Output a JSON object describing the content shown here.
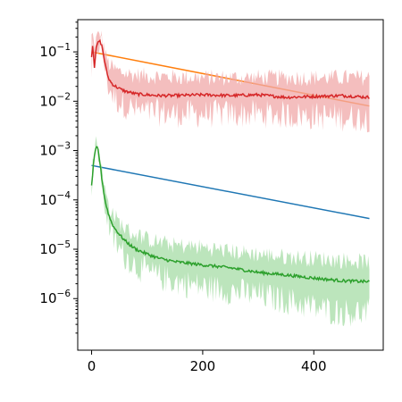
{
  "chart_data": {
    "type": "line",
    "title": "",
    "xlabel": "",
    "ylabel": "",
    "yscale": "log",
    "xlim": [
      -25,
      525
    ],
    "ylim": [
      9e-08,
      0.45
    ],
    "x_ticks": [
      {
        "value": 0,
        "label": "0"
      },
      {
        "value": 200,
        "label": "200"
      },
      {
        "value": 400,
        "label": "400"
      }
    ],
    "y_ticks": [
      {
        "value": 0.1,
        "base": "10",
        "exp": "−1"
      },
      {
        "value": 0.01,
        "base": "10",
        "exp": "−2"
      },
      {
        "value": 0.001,
        "base": "10",
        "exp": "−3"
      },
      {
        "value": 0.0001,
        "base": "10",
        "exp": "−4"
      },
      {
        "value": 1e-05,
        "base": "10",
        "exp": "−5"
      },
      {
        "value": 1e-06,
        "base": "10",
        "exp": "−6"
      }
    ],
    "grid": false,
    "legend": "none",
    "series": [
      {
        "color": "#ff7f0e",
        "style": "line",
        "x": [
          0,
          500
        ],
        "y": [
          0.1,
          0.008
        ]
      },
      {
        "color": "#1f77b4",
        "style": "line",
        "x": [
          0,
          500
        ],
        "y": [
          0.0005,
          4.2e-05
        ]
      },
      {
        "color": "#d62728",
        "band_color": "#f0a8a8",
        "style": "mean_with_band",
        "x": [
          0,
          2,
          5,
          8,
          10,
          14,
          18,
          22,
          26,
          30,
          35,
          40,
          50,
          60,
          70,
          80,
          100,
          120,
          150,
          200,
          250,
          300,
          350,
          400,
          450,
          500
        ],
        "y": [
          0.08,
          0.15,
          0.05,
          0.11,
          0.14,
          0.17,
          0.14,
          0.08,
          0.045,
          0.03,
          0.024,
          0.021,
          0.018,
          0.016,
          0.015,
          0.014,
          0.0135,
          0.013,
          0.013,
          0.0135,
          0.013,
          0.0135,
          0.012,
          0.0125,
          0.013,
          0.012
        ],
        "band_low": [
          0.03,
          0.07,
          0.03,
          0.06,
          0.09,
          0.12,
          0.1,
          0.05,
          0.025,
          0.016,
          0.012,
          0.009,
          0.0075,
          0.0065,
          0.0055,
          0.005,
          0.0045,
          0.0045,
          0.0042,
          0.0042,
          0.0042,
          0.0042,
          0.004,
          0.0038,
          0.0036,
          0.0035
        ],
        "band_high": [
          0.2,
          0.22,
          0.12,
          0.17,
          0.2,
          0.22,
          0.2,
          0.13,
          0.08,
          0.06,
          0.05,
          0.045,
          0.04,
          0.037,
          0.035,
          0.034,
          0.033,
          0.032,
          0.031,
          0.03,
          0.03,
          0.03,
          0.03,
          0.03,
          0.03,
          0.03
        ]
      },
      {
        "color": "#2ca02c",
        "band_color": "#a6dca6",
        "style": "mean_with_band",
        "x": [
          0,
          2,
          4,
          6,
          8,
          10,
          12,
          14,
          16,
          18,
          20,
          24,
          28,
          32,
          36,
          40,
          50,
          60,
          70,
          80,
          100,
          120,
          150,
          200,
          250,
          300,
          350,
          400,
          450,
          500
        ],
        "y": [
          0.0002,
          0.00035,
          0.0006,
          0.0009,
          0.0011,
          0.00115,
          0.001,
          0.0007,
          0.00045,
          0.0003,
          0.0002,
          0.0001,
          6.5e-05,
          4.5e-05,
          3.5e-05,
          2.8e-05,
          2e-05,
          1.5e-05,
          1.2e-05,
          1e-05,
          8e-06,
          6.6e-06,
          5.6e-06,
          4.8e-06,
          4.2e-06,
          3.4e-06,
          3e-06,
          2.6e-06,
          2.3e-06,
          2.2e-06
        ],
        "band_low": [
          0.00012,
          0.0002,
          0.00035,
          0.0006,
          0.0008,
          0.0009,
          0.0007,
          0.0005,
          0.0003,
          0.00019,
          0.00012,
          6e-05,
          3.5e-05,
          2.2e-05,
          1.6e-05,
          1.2e-05,
          7.5e-06,
          5.5e-06,
          4.5e-06,
          3.5e-06,
          2.6e-06,
          2.1e-06,
          1.7e-06,
          1.3e-06,
          1.1e-06,
          9e-07,
          7e-07,
          5e-07,
          4e-07,
          4e-07
        ],
        "band_high": [
          0.0003,
          0.0005,
          0.0008,
          0.0011,
          0.0013,
          0.0013,
          0.0012,
          0.0009,
          0.0006,
          0.0004,
          0.0003,
          0.00016,
          0.0001,
          7e-05,
          6e-05,
          5e-05,
          3.5e-05,
          2.7e-05,
          2.2e-05,
          2e-05,
          1.6e-05,
          1.4e-05,
          1.2e-05,
          1.1e-05,
          9e-06,
          8e-06,
          7e-06,
          6.5e-06,
          6e-06,
          5.5e-06
        ]
      }
    ]
  }
}
